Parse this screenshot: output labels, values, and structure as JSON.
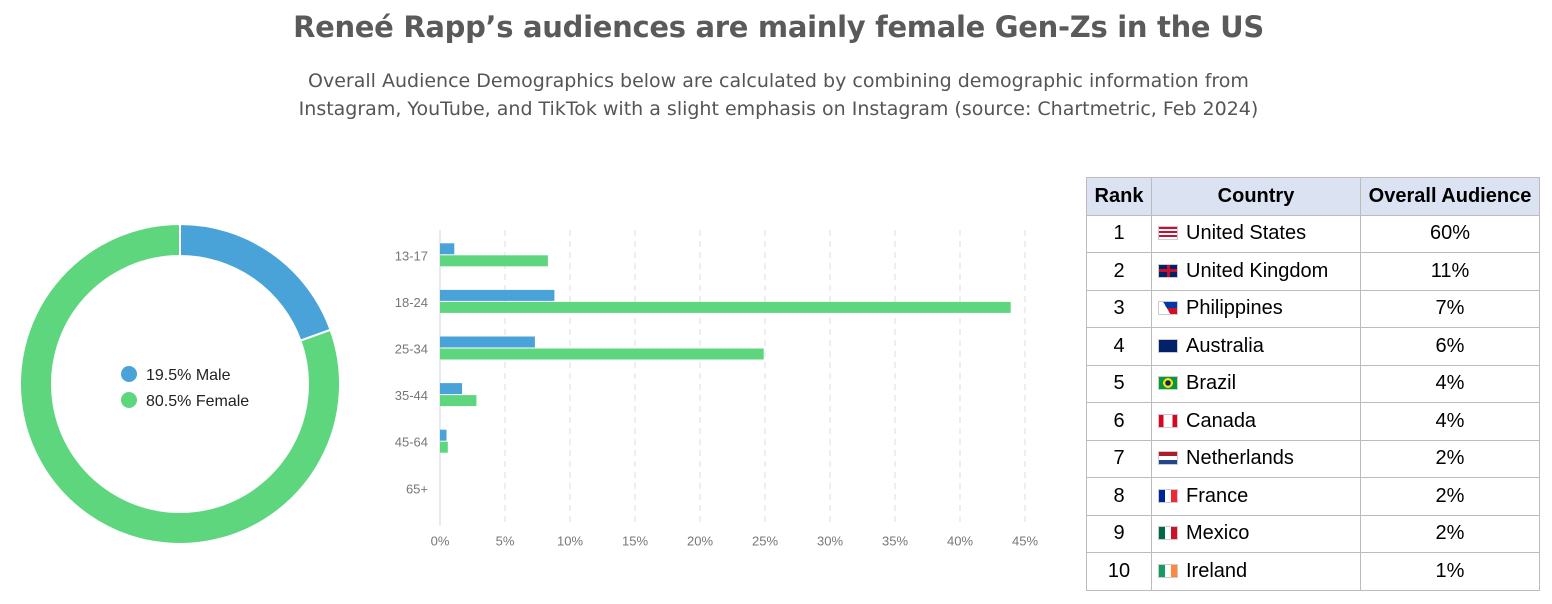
{
  "title": "Reneé Rapp’s audiences are mainly female Gen-Zs in the US",
  "subtitle_line1": "Overall Audience Demographics below are calculated by combining demographic information from",
  "subtitle_line2": "Instagram, YouTube, and TikTok with a slight emphasis on Instagram (source: Chartmetric, Feb 2024)",
  "chart_data": [
    {
      "type": "pie",
      "variant": "donut",
      "slices": [
        {
          "label": "19.5% Male",
          "value": 19.5,
          "color": "#4aa3d8"
        },
        {
          "label": "80.5% Female",
          "value": 80.5,
          "color": "#5ed67e"
        }
      ],
      "legend_placement": "center"
    },
    {
      "type": "bar",
      "orientation": "horizontal",
      "categories": [
        "13-17",
        "18-24",
        "25-34",
        "35-44",
        "45-64",
        "65+"
      ],
      "series": [
        {
          "values": [
            1.1,
            8.8,
            7.3,
            1.7,
            0.5,
            0
          ],
          "color": "#4aa3d8"
        },
        {
          "values": [
            8.3,
            43.9,
            24.9,
            2.8,
            0.6,
            0
          ],
          "color": "#5ed67e"
        }
      ],
      "xlim": [
        0,
        45
      ],
      "xticks": [
        "0%",
        "5%",
        "10%",
        "15%",
        "20%",
        "25%",
        "30%",
        "35%",
        "40%",
        "45%"
      ],
      "grid": true
    },
    {
      "type": "table",
      "headers": [
        "Rank",
        "Country",
        "Overall Audience"
      ],
      "rows": [
        {
          "rank": "1",
          "country": "United States",
          "audience": "60%",
          "flag": "flag-us-icon"
        },
        {
          "rank": "2",
          "country": "United Kingdom",
          "audience": "11%",
          "flag": "flag-uk-icon"
        },
        {
          "rank": "3",
          "country": "Philippines",
          "audience": "7%",
          "flag": "flag-ph-icon"
        },
        {
          "rank": "4",
          "country": "Australia",
          "audience": "6%",
          "flag": "flag-au-icon"
        },
        {
          "rank": "5",
          "country": "Brazil",
          "audience": "4%",
          "flag": "flag-br-icon"
        },
        {
          "rank": "6",
          "country": "Canada",
          "audience": "4%",
          "flag": "flag-ca-icon"
        },
        {
          "rank": "7",
          "country": "Netherlands",
          "audience": "2%",
          "flag": "flag-nl-icon"
        },
        {
          "rank": "8",
          "country": "France",
          "audience": "2%",
          "flag": "flag-fr-icon"
        },
        {
          "rank": "9",
          "country": "Mexico",
          "audience": "2%",
          "flag": "flag-mx-icon"
        },
        {
          "rank": "10",
          "country": "Ireland",
          "audience": "1%",
          "flag": "flag-ie-icon"
        }
      ]
    }
  ]
}
